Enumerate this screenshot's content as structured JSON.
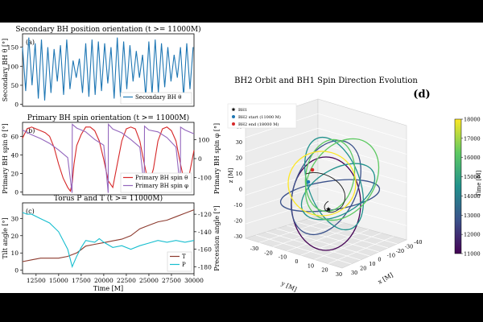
{
  "chart_data": [
    {
      "id": "a",
      "type": "line",
      "title": "Secondary BH position orientation (t >= 11000M)",
      "panel_label": "(a)",
      "ylabel": "Secondary BH θ [°]",
      "xlim": [
        11000,
        30000
      ],
      "ylim": [
        -5,
        185
      ],
      "yticks": [
        "0",
        "50",
        "100",
        "150"
      ],
      "legend": "bottom-right",
      "series": [
        {
          "name": "Secondary BH θ",
          "color": "#1f77b4",
          "x": [
            11000,
            11350,
            11700,
            12050,
            12400,
            12750,
            13100,
            13450,
            13800,
            14150,
            14500,
            14850,
            15200,
            15550,
            15900,
            16250,
            16600,
            16950,
            17300,
            17650,
            18000,
            18350,
            18700,
            19050,
            19400,
            19750,
            20100,
            20450,
            20800,
            21150,
            21500,
            21850,
            22200,
            22550,
            22900,
            23250,
            23600,
            23950,
            24300,
            24650,
            25000,
            25350,
            25700,
            26050,
            26400,
            26750,
            27100,
            27450,
            27800,
            28150,
            28500,
            28850,
            29200,
            29550,
            29900
          ],
          "y": [
            150,
            35,
            175,
            50,
            160,
            15,
            170,
            10,
            150,
            30,
            145,
            60,
            155,
            25,
            170,
            40,
            115,
            70,
            120,
            30,
            160,
            20,
            170,
            25,
            165,
            35,
            160,
            55,
            150,
            15,
            175,
            20,
            165,
            40,
            155,
            60,
            140,
            70,
            130,
            20,
            165,
            25,
            170,
            30,
            160,
            45,
            150,
            60,
            130,
            70,
            150,
            20,
            160,
            40,
            150
          ]
        }
      ]
    },
    {
      "id": "b",
      "type": "line",
      "title": "Primary BH spin orientation (t >= 11000M)",
      "panel_label": "(b)",
      "ylabel": "Primary BH spin θ [°]",
      "y2label": "Primary BH spin φ [°]",
      "xlim": [
        11000,
        30000
      ],
      "ylim": [
        -3,
        75
      ],
      "y2lim": [
        -190,
        190
      ],
      "yticks": [
        "0",
        "20",
        "40",
        "60"
      ],
      "y2ticks": [
        "-100",
        "0",
        "100"
      ],
      "legend": "bottom-right",
      "series": [
        {
          "name": "Primary BH spin θ",
          "color": "#d62728",
          "axis": "left",
          "x": [
            11000,
            11500,
            12000,
            12500,
            13000,
            13500,
            14000,
            14500,
            15000,
            15500,
            16000,
            16300,
            16500,
            16700,
            17000,
            17500,
            18000,
            18500,
            19000,
            19500,
            20000,
            20500,
            21000,
            21500,
            22000,
            22500,
            23000,
            23500,
            24000,
            24500,
            25000,
            25500,
            26000,
            26500,
            27000,
            27500,
            28000,
            28500,
            29000,
            29500,
            30000
          ],
          "y": [
            58,
            68,
            70,
            68,
            66,
            64,
            60,
            48,
            30,
            15,
            5,
            1,
            10,
            30,
            50,
            62,
            70,
            70,
            66,
            55,
            35,
            12,
            5,
            30,
            55,
            68,
            70,
            68,
            55,
            30,
            8,
            25,
            55,
            68,
            70,
            66,
            55,
            30,
            8,
            20,
            45
          ]
        },
        {
          "name": "Primary BH spin φ",
          "color": "#9467bd",
          "axis": "right",
          "x": [
            11000,
            12000,
            13000,
            14000,
            15000,
            16000,
            16490,
            16510,
            17000,
            18000,
            19000,
            20000,
            20490,
            20510,
            21000,
            22000,
            23000,
            24000,
            24490,
            24510,
            25000,
            26000,
            27000,
            28000,
            28490,
            28510,
            29000,
            30000
          ],
          "y": [
            150,
            125,
            105,
            80,
            45,
            5,
            -180,
            180,
            160,
            140,
            100,
            70,
            -180,
            180,
            155,
            135,
            100,
            60,
            -150,
            170,
            150,
            140,
            110,
            60,
            -160,
            165,
            150,
            130
          ]
        }
      ]
    },
    {
      "id": "c",
      "type": "line",
      "title": "Torus P and T (t >= 11000M)",
      "panel_label": "(c)",
      "xlabel": "Time [M]",
      "ylabel": "Tilt angle [°]",
      "y2label": "Precession angle [°]",
      "xlim": [
        11000,
        30000
      ],
      "ylim": [
        -2,
        39
      ],
      "y2lim": [
        -188,
        -107
      ],
      "xticks": [
        12500,
        15000,
        17500,
        20000,
        22500,
        25000,
        27500,
        30000
      ],
      "yticks": [
        "0",
        "10",
        "20",
        "30"
      ],
      "y2ticks": [
        "-180",
        "-160",
        "-140",
        "-120"
      ],
      "legend": "bottom-right",
      "series": [
        {
          "name": "T",
          "color": "#8c3a2e",
          "axis": "left",
          "x": [
            11000,
            12000,
            13000,
            14000,
            15000,
            16000,
            17000,
            17500,
            18000,
            19000,
            20000,
            21000,
            22000,
            23000,
            24000,
            25000,
            26000,
            27000,
            28000,
            29000,
            30000
          ],
          "y": [
            5,
            6,
            7,
            7,
            7,
            8,
            10,
            12,
            14,
            15,
            16,
            17,
            18,
            20,
            24,
            26,
            28,
            29,
            31,
            33,
            35
          ],
          "legend_label": "T"
        },
        {
          "name": "P",
          "color": "#17becf",
          "axis": "right",
          "x": [
            11000,
            11500,
            12000,
            13000,
            14000,
            15000,
            16000,
            16500,
            17000,
            17500,
            18000,
            19000,
            19500,
            20000,
            21000,
            22000,
            23000,
            24000,
            25000,
            26000,
            27000,
            28000,
            29000,
            30000
          ],
          "y": [
            -118,
            -120,
            -120,
            -125,
            -130,
            -140,
            -160,
            -180,
            -168,
            -158,
            -150,
            -152,
            -148,
            -152,
            -158,
            -156,
            -160,
            -156,
            -153,
            -150,
            -152,
            -150,
            -152,
            -150
          ],
          "legend_label": "P"
        }
      ]
    },
    {
      "id": "d",
      "type": "scatter",
      "title": "BH2 Orbit and BH1 Spin Direction Evolution",
      "panel_label": "(d)",
      "xlabel": "x [M]",
      "ylabel": "y [M]",
      "zlabel": "z [M]",
      "xticks": [
        "-40",
        "-30",
        "-20",
        "-10",
        "0",
        "10",
        "20",
        "30"
      ],
      "yticks": [
        "-30",
        "-20",
        "-10",
        "0",
        "10",
        "20",
        "30"
      ],
      "zticks": [
        "-30",
        "-20",
        "-10",
        "0",
        "10",
        "20",
        "30",
        "40"
      ],
      "legend": "top-left",
      "legend_entries": [
        {
          "label": "BH1",
          "color": "#000000",
          "marker": "star"
        },
        {
          "label": "BH2 start (11000 M)",
          "color": "#1f77b4",
          "marker": "circle"
        },
        {
          "label": "BH2 end (18000 M)",
          "color": "#d62728",
          "marker": "circle"
        }
      ],
      "colorbar": {
        "label": "Time [M]",
        "min": 11000,
        "max": 18000,
        "ticks": [
          "11000",
          "12000",
          "13000",
          "14000",
          "15000",
          "16000",
          "17000",
          "18000"
        ],
        "colors": [
          "#440154",
          "#3b528b",
          "#21918c",
          "#5ec962",
          "#fde725"
        ]
      }
    }
  ]
}
